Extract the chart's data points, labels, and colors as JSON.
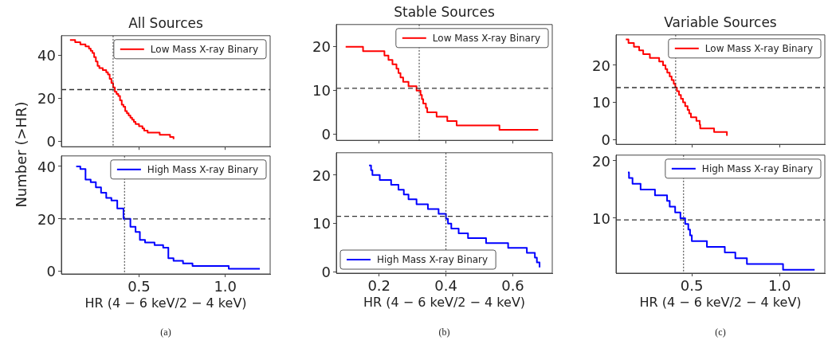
{
  "chart_data": [
    {
      "type": "step",
      "title": "All Sources",
      "ylabel": "Number (>HR)",
      "xlim": [
        0.05,
        1.26
      ],
      "xticks": [
        0.5,
        1
      ],
      "ylim": [
        -2.5,
        49
      ],
      "yticks": [
        0,
        20,
        40
      ],
      "tick_labels": "y",
      "legend": "top right",
      "series": [
        {
          "name": "Low Mass X-ray Binary",
          "color": "#ff0000",
          "x": [
            0.1,
            0.13,
            0.16,
            0.19,
            0.21,
            0.22,
            0.23,
            0.24,
            0.25,
            0.26,
            0.27,
            0.29,
            0.31,
            0.32,
            0.33,
            0.34,
            0.35,
            0.36,
            0.37,
            0.38,
            0.39,
            0.4,
            0.41,
            0.42,
            0.43,
            0.44,
            0.45,
            0.46,
            0.47,
            0.48,
            0.5,
            0.52,
            0.53,
            0.55,
            0.62,
            0.68,
            0.7
          ],
          "values": [
            47,
            46,
            45,
            44,
            43,
            42,
            41,
            39,
            37,
            35,
            34,
            33,
            32,
            31,
            29,
            27,
            25,
            23,
            22,
            21,
            19,
            17,
            16,
            14,
            13,
            12,
            11,
            10,
            9,
            8,
            7,
            6,
            5,
            4,
            3,
            2,
            1
          ]
        }
      ],
      "ref_lines": [
        {
          "axis": "x",
          "value": 0.35,
          "color": "#333333",
          "line_style": "dotted"
        },
        {
          "axis": "y",
          "value": 24,
          "color": "#333333",
          "line_style": "dashed"
        }
      ]
    },
    {
      "type": "step",
      "title": "Stable Sources",
      "xlim": [
        0.072,
        0.718
      ],
      "xticks": [
        0.2,
        0.4,
        0.6
      ],
      "ylim": [
        -1.4,
        25.1
      ],
      "yticks": [
        0,
        10,
        20
      ],
      "tick_labels": "y",
      "legend": "top right",
      "series": [
        {
          "name": "Low Mass X-ray Binary",
          "color": "#ff0000",
          "x": [
            0.1,
            0.152,
            0.216,
            0.228,
            0.24,
            0.252,
            0.258,
            0.264,
            0.272,
            0.288,
            0.312,
            0.324,
            0.328,
            0.332,
            0.34,
            0.344,
            0.372,
            0.404,
            0.432,
            0.56,
            0.676
          ],
          "values": [
            20,
            19,
            18,
            17,
            16,
            15,
            14,
            13,
            12,
            11,
            10,
            9,
            8,
            7,
            6,
            5,
            4,
            3,
            2,
            1,
            1
          ]
        }
      ],
      "ref_lines": [
        {
          "axis": "x",
          "value": 0.32,
          "color": "#333333",
          "line_style": "dotted"
        },
        {
          "axis": "y",
          "value": 10.5,
          "color": "#333333",
          "line_style": "dashed"
        }
      ]
    },
    {
      "type": "step",
      "title": "Variable Sources",
      "xlim": [
        0.068,
        1.258
      ],
      "xticks": [
        0.5,
        1
      ],
      "ylim": [
        -1.3,
        28.2
      ],
      "yticks": [
        0,
        10,
        20
      ],
      "tick_labels": "y",
      "legend": "top right",
      "series": [
        {
          "name": "Low Mass X-ray Binary",
          "color": "#ff0000",
          "x": [
            0.124,
            0.139,
            0.17,
            0.2,
            0.223,
            0.261,
            0.314,
            0.336,
            0.35,
            0.36,
            0.374,
            0.385,
            0.397,
            0.406,
            0.415,
            0.427,
            0.438,
            0.45,
            0.462,
            0.476,
            0.485,
            0.495,
            0.526,
            0.545,
            0.548,
            0.627,
            0.7
          ],
          "values": [
            27,
            26,
            25,
            24,
            23,
            22,
            21,
            20,
            19,
            18,
            17,
            16,
            15,
            14,
            13,
            12,
            11,
            10,
            9,
            8,
            7,
            6,
            5,
            4,
            3,
            2,
            1
          ]
        }
      ],
      "ref_lines": [
        {
          "axis": "x",
          "value": 0.408,
          "color": "#333333",
          "line_style": "dotted"
        },
        {
          "axis": "y",
          "value": 14,
          "color": "#333333",
          "line_style": "dashed"
        }
      ]
    },
    {
      "type": "step",
      "xlabel": "HR (4 − 6 keV/2 − 4 keV)",
      "xlim": [
        0.05,
        1.26
      ],
      "xticks": [
        0.5,
        {
          "value": 1,
          "label": "1.0"
        }
      ],
      "ylim": [
        -1,
        44
      ],
      "yticks": [
        0,
        20,
        40
      ],
      "legend": "top right",
      "annotations": [
        "(a)"
      ],
      "series": [
        {
          "name": "High Mass X-ray Binary",
          "color": "#0000ff",
          "x": [
            0.136,
            0.16,
            0.19,
            0.22,
            0.25,
            0.28,
            0.31,
            0.34,
            0.374,
            0.41,
            0.45,
            0.48,
            0.505,
            0.535,
            0.59,
            0.64,
            0.67,
            0.7,
            0.755,
            0.81,
            1.02,
            1.2
          ],
          "values": [
            40,
            39,
            35,
            34,
            32,
            30,
            28,
            27,
            24,
            20,
            17,
            15,
            12,
            11,
            10,
            9,
            5,
            4,
            3,
            2,
            1,
            1
          ]
        }
      ],
      "ref_lines": [
        {
          "axis": "x",
          "value": 0.416,
          "color": "#333333",
          "line_style": "dotted"
        },
        {
          "axis": "y",
          "value": 20,
          "color": "#333333",
          "line_style": "dashed"
        }
      ]
    },
    {
      "type": "step",
      "xlabel": "HR (4 − 6 keV/2 − 4 keV)",
      "xlim": [
        0.072,
        0.718
      ],
      "xticks": [
        0.2,
        0.4,
        0.6
      ],
      "ylim": [
        -0.2,
        24.6
      ],
      "yticks": [
        0,
        10,
        20
      ],
      "legend": "bottom left",
      "annotations": [
        "(b)"
      ],
      "series": [
        {
          "name": "High Mass X-ray Binary",
          "color": "#0000ff",
          "x": [
            0.17,
            0.176,
            0.18,
            0.202,
            0.236,
            0.258,
            0.274,
            0.288,
            0.312,
            0.346,
            0.378,
            0.4,
            0.406,
            0.416,
            0.438,
            0.466,
            0.52,
            0.586,
            0.642,
            0.666,
            0.672,
            0.68
          ],
          "values": [
            22,
            21,
            20,
            19,
            18,
            17,
            16,
            15,
            14,
            13,
            12,
            11,
            10,
            9,
            8,
            7,
            6,
            5,
            4,
            3,
            2,
            1
          ]
        }
      ],
      "ref_lines": [
        {
          "axis": "x",
          "value": 0.4,
          "color": "#333333",
          "line_style": "dotted"
        },
        {
          "axis": "y",
          "value": 11.5,
          "color": "#333333",
          "line_style": "dashed"
        }
      ]
    },
    {
      "type": "step",
      "xlabel": "HR (4 − 6 keV/2 − 4 keV)",
      "xlim": [
        0.068,
        1.258
      ],
      "xticks": [
        0.5,
        {
          "value": 1,
          "label": "1.0"
        }
      ],
      "ylim": [
        0.4,
        21
      ],
      "yticks": [
        10,
        20
      ],
      "legend": "top right",
      "annotations": [
        "(c)"
      ],
      "series": [
        {
          "name": "High Mass X-ray Binary",
          "color": "#0000ff",
          "x": [
            0.136,
            0.142,
            0.162,
            0.208,
            0.29,
            0.359,
            0.374,
            0.405,
            0.435,
            0.462,
            0.48,
            0.49,
            0.5,
            0.586,
            0.688,
            0.748,
            0.814,
            1.02,
            1.2
          ],
          "values": [
            18,
            17,
            16,
            15,
            14,
            13,
            12,
            11,
            10,
            9,
            8,
            7,
            6,
            5,
            4,
            3,
            2,
            1,
            1
          ]
        }
      ],
      "ref_lines": [
        {
          "axis": "x",
          "value": 0.453,
          "color": "#333333",
          "line_style": "dotted"
        },
        {
          "axis": "y",
          "value": 9.7,
          "color": "#333333",
          "line_style": "dashed"
        }
      ]
    }
  ]
}
